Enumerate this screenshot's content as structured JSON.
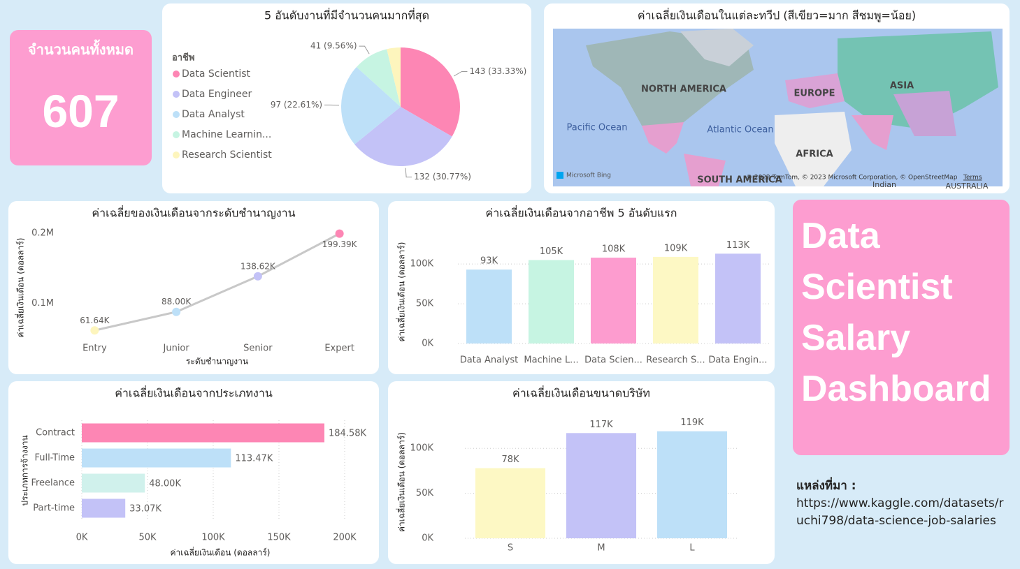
{
  "kpi": {
    "label": "จำนวนคนทั้งหมด",
    "value": 607
  },
  "dashboard_title": "Data Scientist Salary Dashboard",
  "source": {
    "label": "แหล่งที่มา :",
    "url": "https://www.kaggle.com/datasets/ruchi798/data-science-job-salaries"
  },
  "map": {
    "title": "ค่าเฉลี่ยเงินเดือนในแต่ละทวีป (สีเขียว=มาก สีชมพู=น้อย)",
    "labels": [
      "NORTH AMERICA",
      "EUROPE",
      "ASIA",
      "AFRICA",
      "SOUTH AMERICA",
      "Pacific Ocean",
      "Atlantic Ocean",
      "Indian",
      "AUSTRALIA"
    ],
    "provider": "Microsoft Bing",
    "attribution": "© 2022 TomTom, © 2023 Microsoft Corporation, © OpenStreetMap",
    "terms": "Terms"
  },
  "chart_data": [
    {
      "type": "pie",
      "title": "5 อันดับงานที่มีจำนวนคนมากที่สุด",
      "legend_title": "อาชีพ",
      "categories": [
        "Data Scientist",
        "Data Engineer",
        "Data Analyst",
        "Machine Learnin...",
        "Research Scientist"
      ],
      "values": [
        143,
        132,
        97,
        41,
        16
      ],
      "value_labels": [
        "143 (33.33%)",
        "132 (30.77%)",
        "97 (22.61%)",
        "41 (9.56%)",
        null
      ],
      "colors": [
        "#fd86b4",
        "#c3c2f7",
        "#bde0f8",
        "#c6f4e2",
        "#fdf5bd"
      ],
      "legend": "left"
    },
    {
      "type": "line",
      "title": "ค่าเฉลี่ยของเงินเดือนจากระดับชำนาญงาน",
      "x_label": "ระดับชำนาญงาน",
      "y_label": "ค่าเฉลี่ยเงินเดือน (ดอลลาร์)",
      "categories": [
        "Entry",
        "Junior",
        "Senior",
        "Expert"
      ],
      "values": [
        61640,
        88000,
        138620,
        199390
      ],
      "value_labels": [
        "61.64K",
        "88.00K",
        "138.62K",
        "199.39K"
      ],
      "color": "#c8c8c8",
      "point_colors": [
        "#fdf5bd",
        "#bde0f8",
        "#c3c2f7",
        "#fd86b4"
      ],
      "ylim": [
        45000,
        200000
      ],
      "yticks": [
        {
          "value": 100000,
          "label": "0.1M"
        },
        {
          "value": 200000,
          "label": "0.2M"
        }
      ],
      "grid": false
    },
    {
      "type": "bar",
      "title": "ค่าเฉลี่ยเงินเดือนจากอาชีพ 5 อันดับแรก",
      "y_label": "ค่าเฉลี่ยเงินเดือน (ดอลลาร์)",
      "categories": [
        "Data Analyst",
        "Machine L...",
        "Data Scien...",
        "Research S...",
        "Data Engin..."
      ],
      "values": [
        93000,
        105000,
        108000,
        109000,
        113000
      ],
      "value_labels": [
        "93K",
        "105K",
        "108K",
        "109K",
        "113K"
      ],
      "colors": [
        "#bde0f8",
        "#c6f4e2",
        "#fd9ccf",
        "#fdf8c4",
        "#c3c2f7"
      ],
      "ylim": [
        0,
        130000
      ],
      "yticks": [
        {
          "value": 0,
          "label": "0K"
        },
        {
          "value": 50000,
          "label": "50K"
        },
        {
          "value": 100000,
          "label": "100K"
        }
      ],
      "grid": true
    },
    {
      "type": "hbar",
      "title": "ค่าเฉลี่ยเงินเดือนจากประเภทงาน",
      "x_label": "ค่าเฉลี่ยเงินเดือน (ดอลลาร์)",
      "y_label": "ประเภทการจ้างงาน",
      "categories": [
        "Contract",
        "Full-Time",
        "Freelance",
        "Part-time"
      ],
      "values": [
        184580,
        113470,
        48000,
        33070
      ],
      "value_labels": [
        "184.58K",
        "113.47K",
        "48.00K",
        "33.07K"
      ],
      "colors": [
        "#fd86b4",
        "#bde0f8",
        "#d0f1ec",
        "#c3c2f7"
      ],
      "xlim": [
        0,
        200000
      ],
      "xticks": [
        {
          "value": 0,
          "label": "0K"
        },
        {
          "value": 50000,
          "label": "50K"
        },
        {
          "value": 100000,
          "label": "100K"
        },
        {
          "value": 150000,
          "label": "150K"
        },
        {
          "value": 200000,
          "label": "200K"
        }
      ],
      "grid": true
    },
    {
      "type": "bar",
      "title": "ค่าเฉลี่ยเงินเดือนขนาดบริษัท",
      "y_label": "ค่าเฉลี่ยเงินเดือน (ดอลลาร์)",
      "categories": [
        "S",
        "M",
        "L"
      ],
      "values": [
        78000,
        117000,
        119000
      ],
      "value_labels": [
        "78K",
        "117K",
        "119K"
      ],
      "colors": [
        "#fdf8c4",
        "#c3c2f7",
        "#bde0f8"
      ],
      "ylim": [
        0,
        125000
      ],
      "yticks": [
        {
          "value": 0,
          "label": "0K"
        },
        {
          "value": 50000,
          "label": "50K"
        },
        {
          "value": 100000,
          "label": "100K"
        }
      ],
      "grid": true
    }
  ]
}
